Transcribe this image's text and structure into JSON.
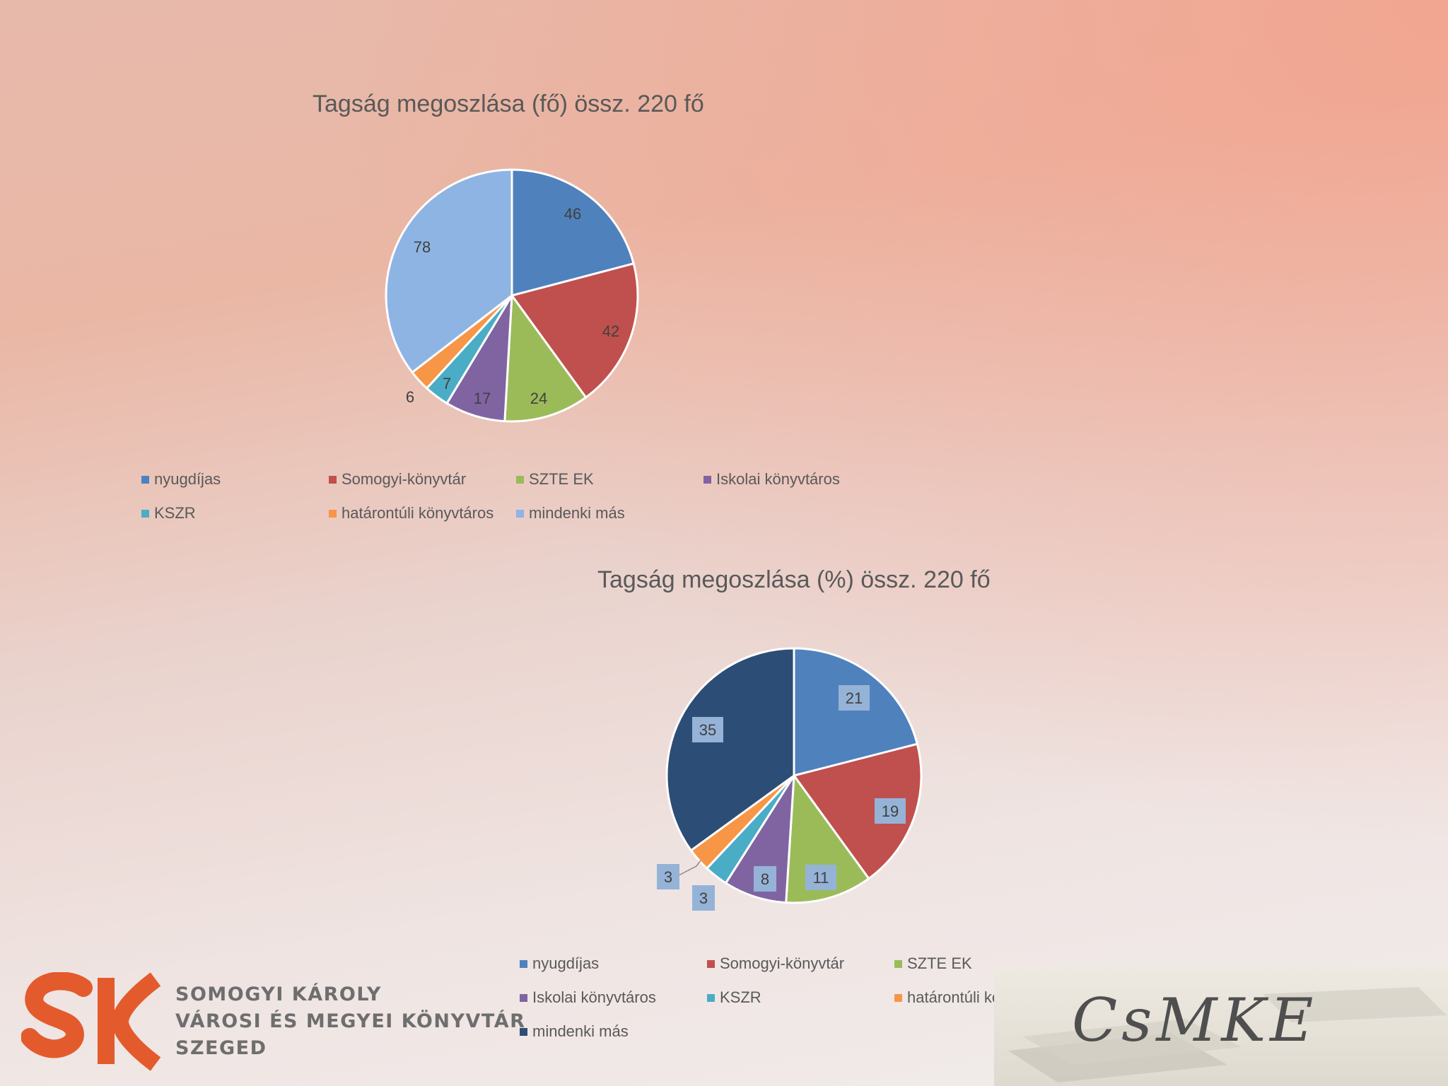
{
  "chart_data": [
    {
      "type": "pie",
      "title": "Tagság megoszlása (fő) össz. 220 fő",
      "categories": [
        "nyugdíjas",
        "Somogyi-könyvtár",
        "SZTE EK",
        "Iskolai könyvtáros",
        "KSZR",
        "határontúli könyvtáros",
        "mindenki más"
      ],
      "values": [
        46,
        42,
        24,
        17,
        7,
        6,
        78
      ],
      "colors": [
        "#4f81bd",
        "#c0504d",
        "#9bbb59",
        "#8064a2",
        "#4bacc6",
        "#f79646",
        "#8eb4e3"
      ],
      "data_labels": [
        "46",
        "42",
        "24",
        "17",
        "7",
        "6",
        "78"
      ],
      "legend": "bottom"
    },
    {
      "type": "pie",
      "title": "Tagság megoszlása (%) össz. 220 fő",
      "categories": [
        "nyugdíjas",
        "Somogyi-könyvtár",
        "SZTE EK",
        "Iskolai könyvtáros",
        "KSZR",
        "határontúli könyvtáros",
        "mindenki más"
      ],
      "values": [
        21,
        19,
        11,
        8,
        3,
        3,
        35
      ],
      "colors": [
        "#4f81bd",
        "#c0504d",
        "#9bbb59",
        "#8064a2",
        "#4bacc6",
        "#f79646",
        "#2c4d75"
      ],
      "data_labels": [
        "21",
        "19",
        "11",
        "8",
        "3",
        "3",
        "35"
      ],
      "legend": "bottom"
    }
  ],
  "logos": {
    "sk_icon_name": "sk-library-logo-icon",
    "sk_lines": [
      "SOMOGYI KÁROLY",
      "VÁROSI ÉS MEGYEI KÖNYVTÁR",
      "SZEGED"
    ],
    "csmke_icon_name": "csmke-logo-icon",
    "csmke_text": "CsMKE"
  }
}
